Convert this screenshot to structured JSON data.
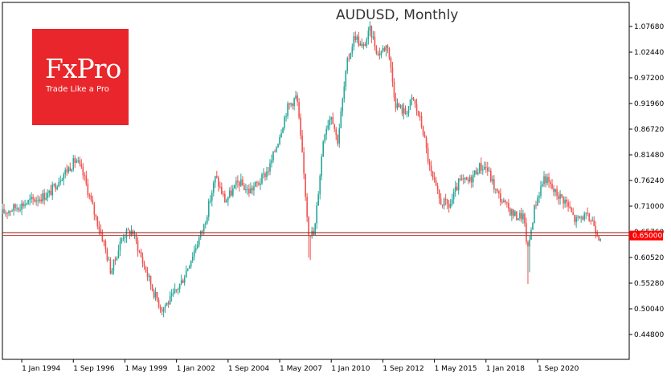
{
  "chart_data": {
    "type": "candlestick",
    "title": "AUDUSD, Monthly",
    "y_ticks": [
      "1.07680",
      "1.02440",
      "0.97200",
      "0.91960",
      "0.86720",
      "0.81480",
      "0.76240",
      "0.71000",
      "0.65760",
      "0.60520",
      "0.55280",
      "0.50040",
      "0.44800"
    ],
    "x_ticks": [
      "1 Jan 1994",
      "1 Sep 1996",
      "1 May 1999",
      "1 Jan 2002",
      "1 Sep 2004",
      "1 May 2007",
      "1 Jan 2010",
      "1 Sep 2012",
      "1 May 2015",
      "1 Jan 2018",
      "1 Sep 2020"
    ],
    "ylim": [
      0.41,
      1.1
    ],
    "current_price": "0.65000",
    "price_lines": [
      0.65,
      0.656
    ],
    "colors": {
      "up": "#26a69a",
      "down": "#ef5350",
      "price_line": "#c0392b",
      "price_label_bg": "#ff0000"
    },
    "anchors": [
      [
        1993.0,
        0.695
      ],
      [
        1994.5,
        0.72
      ],
      [
        1995.5,
        0.735
      ],
      [
        1996.1,
        0.77
      ],
      [
        1996.9,
        0.805
      ],
      [
        1997.3,
        0.77
      ],
      [
        1997.8,
        0.7
      ],
      [
        1998.3,
        0.64
      ],
      [
        1998.7,
        0.575
      ],
      [
        1999.3,
        0.65
      ],
      [
        1999.8,
        0.66
      ],
      [
        2000.3,
        0.6
      ],
      [
        2000.9,
        0.535
      ],
      [
        2001.3,
        0.5
      ],
      [
        2001.8,
        0.52
      ],
      [
        2002.4,
        0.56
      ],
      [
        2003.0,
        0.62
      ],
      [
        2003.5,
        0.67
      ],
      [
        2004.1,
        0.77
      ],
      [
        2004.6,
        0.72
      ],
      [
        2005.3,
        0.76
      ],
      [
        2005.8,
        0.74
      ],
      [
        2006.4,
        0.76
      ],
      [
        2006.9,
        0.79
      ],
      [
        2007.3,
        0.84
      ],
      [
        2007.8,
        0.91
      ],
      [
        2008.3,
        0.935
      ],
      [
        2008.7,
        0.76
      ],
      [
        2008.9,
        0.66
      ],
      [
        2009.2,
        0.65
      ],
      [
        2009.7,
        0.86
      ],
      [
        2010.1,
        0.9
      ],
      [
        2010.4,
        0.84
      ],
      [
        2010.9,
        1.0
      ],
      [
        2011.3,
        1.06
      ],
      [
        2011.7,
        1.03
      ],
      [
        2012.1,
        1.07
      ],
      [
        2012.5,
        1.02
      ],
      [
        2013.0,
        1.04
      ],
      [
        2013.4,
        0.92
      ],
      [
        2013.9,
        0.9
      ],
      [
        2014.3,
        0.93
      ],
      [
        2014.8,
        0.87
      ],
      [
        2015.2,
        0.78
      ],
      [
        2015.7,
        0.72
      ],
      [
        2016.2,
        0.71
      ],
      [
        2016.7,
        0.76
      ],
      [
        2017.2,
        0.76
      ],
      [
        2017.7,
        0.79
      ],
      [
        2018.1,
        0.79
      ],
      [
        2018.6,
        0.74
      ],
      [
        2019.1,
        0.71
      ],
      [
        2019.6,
        0.69
      ],
      [
        2020.0,
        0.69
      ],
      [
        2020.25,
        0.62
      ],
      [
        2020.6,
        0.71
      ],
      [
        2021.1,
        0.77
      ],
      [
        2021.6,
        0.74
      ],
      [
        2022.2,
        0.72
      ],
      [
        2022.7,
        0.68
      ],
      [
        2023.1,
        0.69
      ],
      [
        2023.6,
        0.68
      ],
      [
        2023.9,
        0.65
      ]
    ]
  }
}
